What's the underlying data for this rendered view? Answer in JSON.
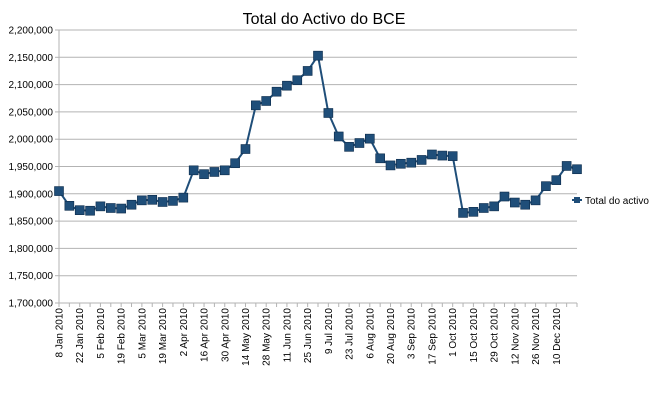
{
  "chart_data": {
    "type": "line",
    "title": "Total do Activo do BCE",
    "xlabel": "",
    "ylabel": "",
    "ylim": [
      1700000,
      2200000
    ],
    "ytick_step": 50000,
    "y_ticks": [
      "1,700,000",
      "1,750,000",
      "1,800,000",
      "1,850,000",
      "1,900,000",
      "1,950,000",
      "2,000,000",
      "2,050,000",
      "2,100,000",
      "2,150,000",
      "2,200,000"
    ],
    "x_tick_labels": [
      "8 Jan 2010",
      "22 Jan 2010",
      "5 Feb 2010",
      "19 Feb 2010",
      "5 Mar 2010",
      "19 Mar 2010",
      "2 Apr 2010",
      "16 Apr 2010",
      "30 Apr 2010",
      "14 May 2010",
      "28 May 2010",
      "11 Jun 2010",
      "25 Jun 2010",
      "9 Jul 2010",
      "23 Jul 2010",
      "6 Aug 2010",
      "20 Aug 2010",
      "3 Sep 2010",
      "17 Sep 2010",
      "1 Oct 2010",
      "15 Oct 2010",
      "29 Oct 2010",
      "12 Nov 2010",
      "26 Nov 2010",
      "10 Dec 2010"
    ],
    "grid": "horizontal",
    "legend_position": "right",
    "marker": "square",
    "series": [
      {
        "name": "Total do activo",
        "color": "#1f4e79",
        "values": [
          1905000,
          1878000,
          1870000,
          1869000,
          1877000,
          1874000,
          1873000,
          1880000,
          1888000,
          1889000,
          1885000,
          1887000,
          1893000,
          1943000,
          1936000,
          1940000,
          1943000,
          1956000,
          1982000,
          2062000,
          2070000,
          2087000,
          2098000,
          2108000,
          2125000,
          2153000,
          2048000,
          2005000,
          1986000,
          1993000,
          2001000,
          1965000,
          1952000,
          1955000,
          1957000,
          1962000,
          1972000,
          1970000,
          1969000,
          1865000,
          1867000,
          1874000,
          1877000,
          1895000,
          1884000,
          1880000,
          1888000,
          1914000,
          1925000,
          1951000,
          1945000
        ]
      }
    ]
  }
}
